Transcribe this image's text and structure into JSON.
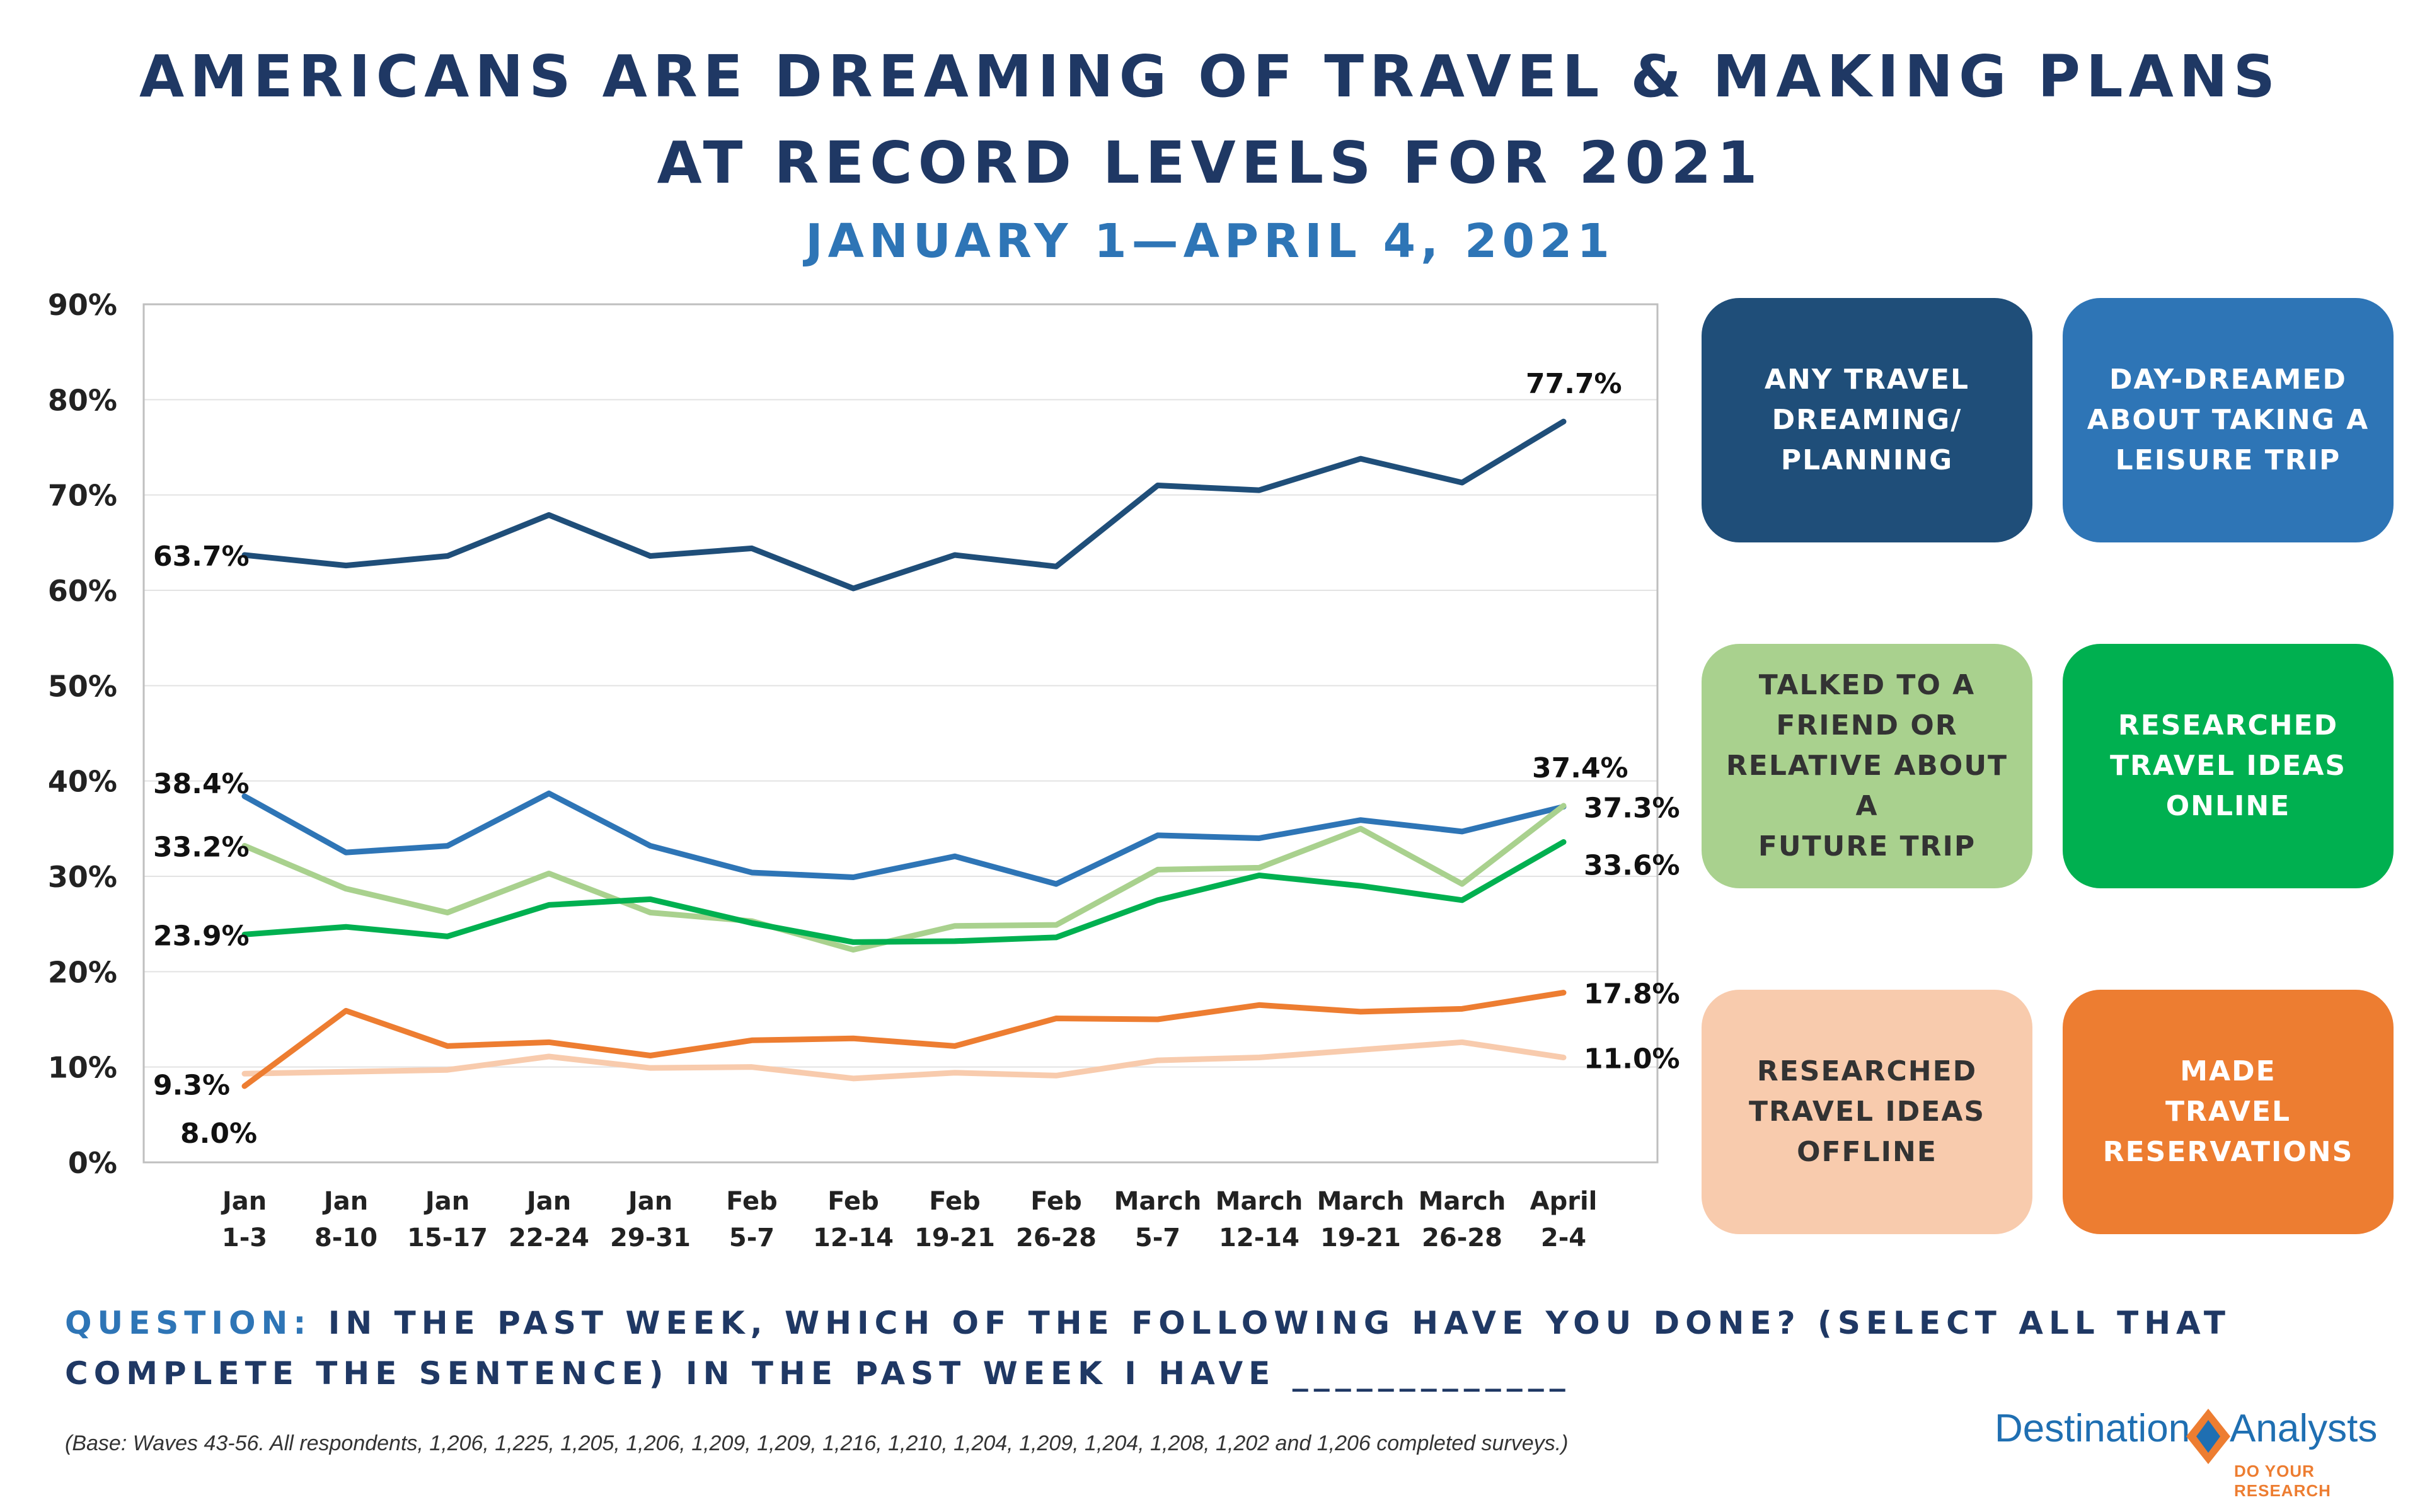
{
  "title_line1": "AMERICANS ARE DREAMING OF TRAVEL & MAKING PLANS",
  "title_line2": "AT RECORD LEVELS FOR 2021",
  "subtitle": "JANUARY 1—APRIL 4, 2021",
  "question": {
    "label": "QUESTION:",
    "text": " IN THE PAST WEEK, WHICH OF THE FOLLOWING HAVE YOU DONE? (SELECT ALL THAT COMPLETE THE SENTENCE) IN THE PAST WEEK I HAVE _____________"
  },
  "base_note": "(Base: Waves 43-56.  All respondents, 1,206, 1,225, 1,205, 1,206, 1,209, 1,209, 1,216, 1,210, 1,204, 1,209, 1,204, 1,208, 1,202 and 1,206 completed surveys.)",
  "logo": {
    "word1": "Destination",
    "word2": "Analysts",
    "tagline": "DO YOUR RESEARCH",
    "colors": {
      "blue": "#1f6fb2",
      "orange": "#ed7d31"
    }
  },
  "legend": [
    {
      "label": "ANY TRAVEL\nDREAMING/\nPLANNING",
      "color": "#1f4e79",
      "text_color": "#ffffff"
    },
    {
      "label": "DAY-DREAMED\nABOUT TAKING A\nLEISURE TRIP",
      "color": "#2e75b6",
      "text_color": "#ffffff"
    },
    {
      "label": "TALKED TO A\nFRIEND OR\nRELATIVE ABOUT A\nFUTURE TRIP",
      "color": "#a9d18e",
      "text_color": "#333333"
    },
    {
      "label": "RESEARCHED\nTRAVEL IDEAS\nONLINE",
      "color": "#00b050",
      "text_color": "#ffffff"
    },
    {
      "label": "RESEARCHED\nTRAVEL IDEAS\nOFFLINE",
      "color": "#f8cbad",
      "text_color": "#333333"
    },
    {
      "label": "MADE\nTRAVEL\nRESERVATIONS",
      "color": "#ed7d31",
      "text_color": "#ffffff"
    }
  ],
  "chart_data": {
    "type": "line",
    "categories": [
      [
        "Jan",
        "1-3"
      ],
      [
        "Jan",
        "8-10"
      ],
      [
        "Jan",
        "15-17"
      ],
      [
        "Jan",
        "22-24"
      ],
      [
        "Jan",
        "29-31"
      ],
      [
        "Feb",
        "5-7"
      ],
      [
        "Feb",
        "12-14"
      ],
      [
        "Feb",
        "19-21"
      ],
      [
        "Feb",
        "26-28"
      ],
      [
        "March",
        "5-7"
      ],
      [
        "March",
        "12-14"
      ],
      [
        "March",
        "19-21"
      ],
      [
        "March",
        "26-28"
      ],
      [
        "April",
        "2-4"
      ]
    ],
    "ylim": [
      0,
      90
    ],
    "yticks": [
      0,
      10,
      20,
      30,
      40,
      50,
      60,
      70,
      80,
      90
    ],
    "ytick_labels": [
      "0%",
      "10%",
      "20%",
      "30%",
      "40%",
      "50%",
      "60%",
      "70%",
      "80%",
      "90%"
    ],
    "grid": true,
    "legend_placement": "right",
    "series": [
      {
        "name": "ANY TRAVEL DREAMING/ PLANNING",
        "color": "#1f4e79",
        "values": [
          63.7,
          62.6,
          63.6,
          67.9,
          63.6,
          64.4,
          60.2,
          63.7,
          62.5,
          71.0,
          70.5,
          73.8,
          71.3,
          77.7
        ],
        "start_label": "63.7%",
        "end_label": "77.7%"
      },
      {
        "name": "DAY-DREAMED ABOUT TAKING A LEISURE TRIP",
        "color": "#2e75b6",
        "values": [
          38.4,
          32.5,
          33.2,
          38.7,
          33.2,
          30.4,
          29.9,
          32.1,
          29.2,
          34.3,
          34.0,
          35.9,
          34.7,
          37.3
        ],
        "start_label": "38.4%",
        "end_label": "37.3%"
      },
      {
        "name": "TALKED TO A FRIEND OR RELATIVE ABOUT A FUTURE TRIP",
        "color": "#a9d18e",
        "values": [
          33.2,
          28.7,
          26.2,
          30.3,
          26.2,
          25.3,
          22.3,
          24.8,
          24.9,
          30.7,
          30.9,
          35.0,
          29.2,
          37.4
        ],
        "start_label": "33.2%",
        "end_label": "37.4%"
      },
      {
        "name": "RESEARCHED TRAVEL IDEAS ONLINE",
        "color": "#00b050",
        "values": [
          23.9,
          24.7,
          23.7,
          27.0,
          27.6,
          25.1,
          23.1,
          23.2,
          23.6,
          27.5,
          30.1,
          29.0,
          27.5,
          33.6
        ],
        "start_label": "23.9%",
        "end_label": "33.6%"
      },
      {
        "name": "RESEARCHED TRAVEL IDEAS OFFLINE",
        "color": "#f8cbad",
        "values": [
          9.3,
          9.5,
          9.7,
          11.1,
          9.9,
          10.0,
          8.8,
          9.4,
          9.1,
          10.7,
          11.0,
          11.8,
          12.6,
          11.0
        ],
        "start_label": "9.3%",
        "end_label": "11.0%"
      },
      {
        "name": "MADE TRAVEL RESERVATIONS",
        "color": "#ed7d31",
        "values": [
          8.0,
          15.9,
          12.2,
          12.6,
          11.2,
          12.8,
          13.0,
          12.2,
          15.1,
          15.0,
          16.5,
          15.8,
          16.1,
          17.8
        ],
        "start_label": "8.0%",
        "end_label": "17.8%"
      }
    ]
  }
}
